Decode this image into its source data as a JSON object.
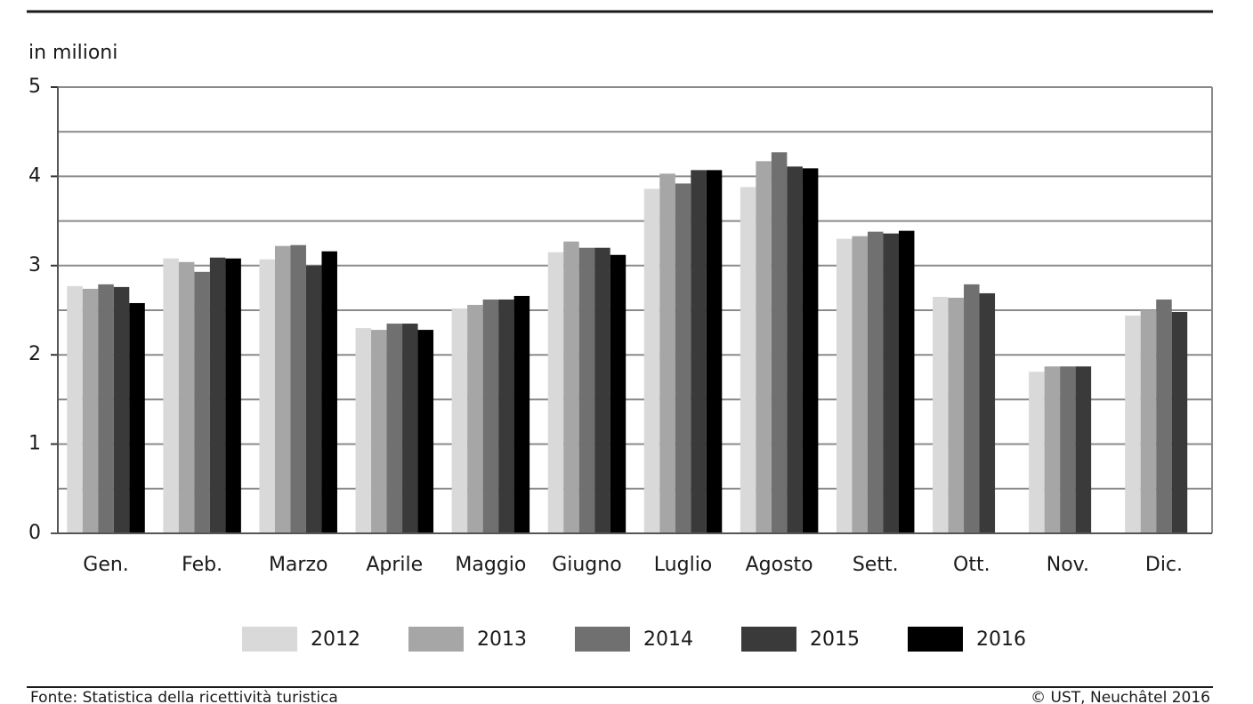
{
  "chart_data": {
    "type": "bar",
    "y_axis_label": "in milioni",
    "categories": [
      "Gen.",
      "Feb.",
      "Marzo",
      "Aprile",
      "Maggio",
      "Giugno",
      "Luglio",
      "Agosto",
      "Sett.",
      "Ott.",
      "Nov.",
      "Dic."
    ],
    "series": [
      {
        "name": "2012",
        "color": "#d9d9d9",
        "values": [
          2.77,
          3.08,
          3.07,
          2.3,
          2.52,
          3.15,
          3.86,
          3.88,
          3.3,
          2.65,
          1.81,
          2.44
        ]
      },
      {
        "name": "2013",
        "color": "#a6a6a6",
        "values": [
          2.74,
          3.04,
          3.22,
          2.28,
          2.56,
          3.27,
          4.03,
          4.17,
          3.33,
          2.64,
          1.87,
          2.5
        ]
      },
      {
        "name": "2014",
        "color": "#707070",
        "values": [
          2.79,
          2.93,
          3.23,
          2.35,
          2.62,
          3.2,
          3.92,
          4.27,
          3.38,
          2.79,
          1.87,
          2.62
        ]
      },
      {
        "name": "2015",
        "color": "#3a3a3a",
        "values": [
          2.76,
          3.09,
          3.0,
          2.35,
          2.62,
          3.2,
          4.07,
          4.11,
          3.36,
          2.69,
          1.87,
          2.48
        ]
      },
      {
        "name": "2016",
        "color": "#000000",
        "values": [
          2.58,
          3.08,
          3.16,
          2.28,
          2.66,
          3.12,
          4.07,
          4.09,
          3.39,
          null,
          null,
          null
        ]
      }
    ],
    "ylim": [
      0,
      5
    ],
    "yticks": [
      0,
      1,
      2,
      3,
      4,
      5
    ],
    "grid": true,
    "legend": "bottom",
    "source": "Fonte: Statistica della ricettività turistica",
    "copyright": "© UST, Neuchâtel 2016"
  }
}
